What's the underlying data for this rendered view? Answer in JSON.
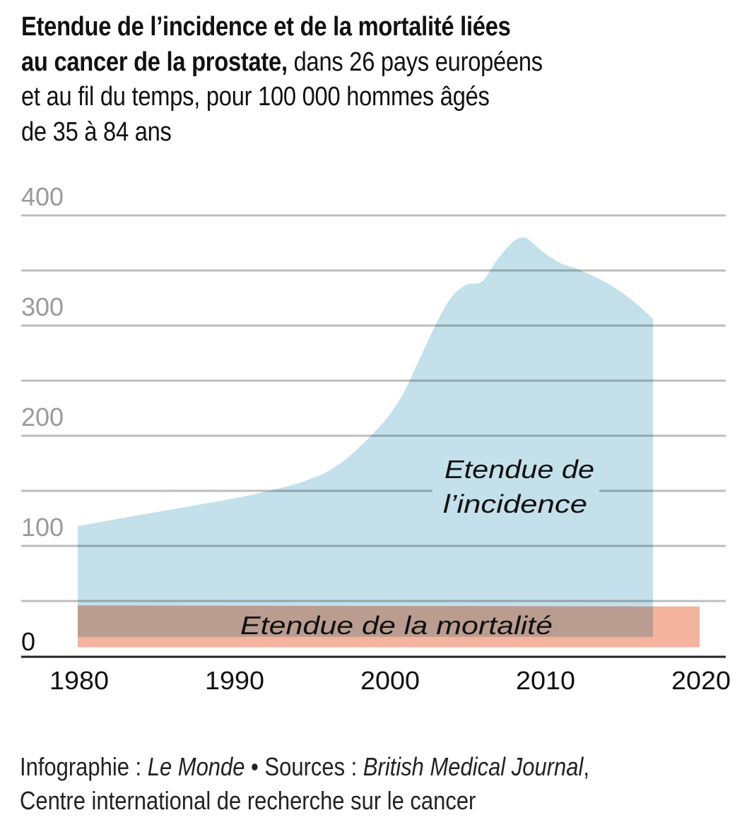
{
  "title": {
    "bold_line1": "Etendue de l’incidence et de la mortalité liées",
    "bold_line2": "au cancer de la prostate,",
    "rest_line2": " dans 26 pays européens",
    "line3": "et au fil du temps, pour 100 000 hommes âgés",
    "line4": "de 35 à 84 ans"
  },
  "footer": {
    "credit_label": "Infographie : ",
    "credit_name": "Le Monde",
    "separator": " • ",
    "sources_label": "Sources : ",
    "source1": "British Medical Journal",
    "comma": ",",
    "source2": "Centre international de recherche sur le cancer"
  },
  "colors": {
    "incidence": "#c3e0eb",
    "mortality": "#f3b39c",
    "overlap": "#ba9e92",
    "grid": "#bdbdbd",
    "axis": "#222222"
  },
  "chart_data": {
    "type": "area",
    "title": "Etendue de l’incidence et de la mortalité liées au cancer de la prostate, dans 26 pays européens et au fil du temps, pour 100 000 hommes âgés de 35 à 84 ans",
    "xlabel": "",
    "ylabel": "",
    "xlim": [
      1980,
      2020
    ],
    "ylim": [
      0,
      400
    ],
    "grid": true,
    "grid_step": 50,
    "yticks": [
      0,
      100,
      200,
      300,
      400
    ],
    "ytick_labels": [
      "0",
      "100",
      "200",
      "300",
      "400"
    ],
    "xticks": [
      1980,
      1990,
      2000,
      2010,
      2020
    ],
    "xtick_labels": [
      "1980",
      "1990",
      "2000",
      "2010",
      "2020"
    ],
    "legend": "none (direct labels)",
    "series": [
      {
        "name": "Etendue de l’incidence",
        "label_lines": [
          "Etendue de",
          "l’incidence"
        ],
        "kind": "range",
        "x": [
          1980,
          1982,
          1984,
          1986,
          1988,
          1990,
          1992,
          1994,
          1995,
          1996,
          1997,
          1998,
          1999,
          2000,
          2001,
          2002,
          2003,
          2004,
          2005,
          2006,
          2007,
          2008,
          2008.6,
          2009,
          2010,
          2011,
          2012,
          2013,
          2014,
          2015,
          2016,
          2017
        ],
        "upper": [
          118,
          123,
          128,
          133,
          138,
          143,
          149,
          156,
          161,
          167,
          176,
          188,
          202,
          218,
          240,
          270,
          300,
          325,
          337,
          340,
          360,
          376,
          380,
          378,
          366,
          357,
          352,
          346,
          339,
          330,
          319,
          306
        ],
        "lower": [
          17.5,
          17.5,
          17.5,
          17.5,
          17.5,
          17.5,
          17.5,
          17.5,
          17.5,
          17.5,
          17.5,
          17.5,
          17.5,
          17.5,
          17.5,
          17.5,
          17.5,
          17.5,
          17.5,
          17.5,
          17.5,
          17.5,
          17.5,
          17.5,
          17.5,
          17.5,
          17.5,
          17.5,
          17.5,
          17.5,
          17.5,
          17.5
        ]
      },
      {
        "name": "Etendue de la mortalité",
        "label_lines": [
          "Etendue de la mortalité"
        ],
        "kind": "range",
        "x": [
          1980,
          2000,
          2020
        ],
        "upper": [
          46,
          45.5,
          45
        ],
        "lower": [
          8,
          8,
          8
        ]
      }
    ]
  }
}
